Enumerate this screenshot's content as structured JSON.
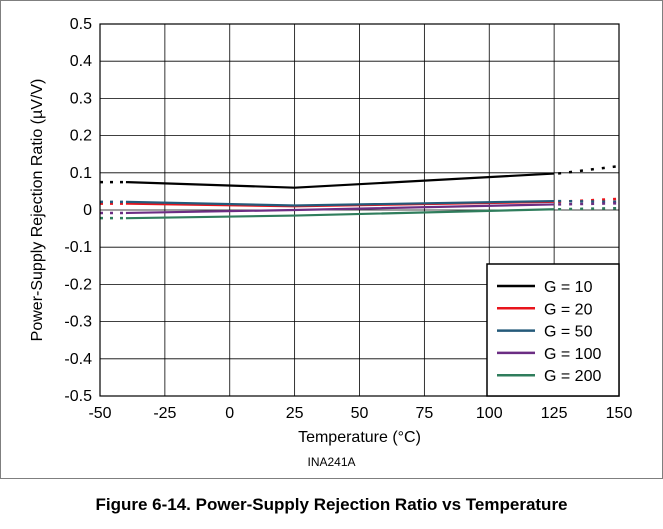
{
  "chart_data": {
    "type": "line",
    "xlabel": "Temperature (°C)",
    "ylabel": "Power-Supply Rejection Ratio (µV/V)",
    "xlim": [
      -50,
      150
    ],
    "ylim": [
      -0.5,
      0.5
    ],
    "x_ticks": [
      "-50",
      "-25",
      "0",
      "25",
      "50",
      "75",
      "100",
      "125",
      "150"
    ],
    "y_ticks": [
      "0.5",
      "0.4",
      "0.3",
      "0.2",
      "0.1",
      "0",
      "-0.1",
      "-0.2",
      "-0.3",
      "-0.4",
      "-0.5"
    ],
    "grid": true,
    "legend_position": "bottom-right",
    "x": [
      -40,
      25,
      125
    ],
    "series": [
      {
        "name": "G = 10",
        "color": "#000000",
        "values": [
          0.075,
          0.06,
          0.098
        ],
        "dotted_start": [
          -50,
          0.075
        ],
        "dotted_end": [
          150,
          0.118
        ]
      },
      {
        "name": "G = 20",
        "color": "#e8141c",
        "values": [
          0.017,
          0.01,
          0.022
        ],
        "dotted_start": [
          -50,
          0.017
        ],
        "dotted_end": [
          150,
          0.03
        ]
      },
      {
        "name": "G = 50",
        "color": "#245a7a",
        "values": [
          0.022,
          0.012,
          0.024
        ],
        "dotted_start": [
          -50,
          0.022
        ],
        "dotted_end": [
          150,
          0.022
        ]
      },
      {
        "name": "G = 100",
        "color": "#6b2d83",
        "values": [
          -0.008,
          0.0,
          0.015
        ],
        "dotted_start": [
          -50,
          -0.008
        ],
        "dotted_end": [
          150,
          0.018
        ]
      },
      {
        "name": "G = 200",
        "color": "#2f7d5c",
        "values": [
          -0.022,
          -0.015,
          0.002
        ],
        "dotted_start": [
          -50,
          -0.022
        ],
        "dotted_end": [
          150,
          0.005
        ]
      }
    ]
  },
  "source_label": "INA241A",
  "caption": "Figure 6-14. Power-Supply Rejection Ratio vs Temperature"
}
